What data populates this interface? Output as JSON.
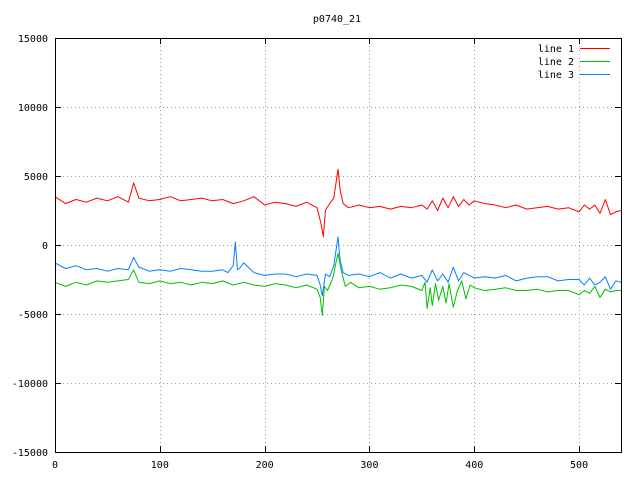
{
  "chart_data": {
    "type": "line",
    "title": "p0740_21",
    "xlabel": "",
    "ylabel": "",
    "xlim": [
      0,
      540
    ],
    "ylim": [
      -15000,
      15000
    ],
    "xticks": [
      0,
      100,
      200,
      300,
      400,
      500
    ],
    "yticks": [
      -15000,
      -10000,
      -5000,
      0,
      5000,
      10000,
      15000
    ],
    "grid": true,
    "legend_position": "top-right",
    "series": [
      {
        "name": "line 1",
        "color": "#ff0000",
        "x": [
          0,
          10,
          20,
          30,
          40,
          50,
          60,
          70,
          75,
          80,
          90,
          100,
          110,
          120,
          130,
          140,
          150,
          160,
          170,
          180,
          190,
          200,
          210,
          220,
          230,
          240,
          250,
          254,
          256,
          258,
          262,
          266,
          270,
          272,
          275,
          280,
          290,
          300,
          310,
          320,
          330,
          340,
          350,
          355,
          360,
          365,
          370,
          375,
          380,
          385,
          390,
          395,
          400,
          410,
          420,
          430,
          440,
          450,
          460,
          470,
          480,
          490,
          500,
          505,
          510,
          515,
          520,
          525,
          530,
          535,
          540
        ],
        "y": [
          3500,
          3000,
          3300,
          3100,
          3400,
          3200,
          3500,
          3100,
          4500,
          3400,
          3200,
          3300,
          3500,
          3200,
          3300,
          3400,
          3200,
          3300,
          3000,
          3200,
          3500,
          2900,
          3100,
          3000,
          2800,
          3100,
          2700,
          1500,
          600,
          2500,
          3000,
          3400,
          5500,
          4000,
          3000,
          2700,
          2900,
          2700,
          2800,
          2600,
          2800,
          2700,
          2900,
          2600,
          3200,
          2500,
          3400,
          2700,
          3500,
          2800,
          3300,
          2900,
          3200,
          3000,
          2900,
          2700,
          2900,
          2600,
          2700,
          2800,
          2600,
          2700,
          2400,
          2900,
          2600,
          2900,
          2300,
          3300,
          2200,
          2400,
          2500
        ]
      },
      {
        "name": "line 2",
        "color": "#00c000",
        "x": [
          0,
          10,
          20,
          30,
          40,
          50,
          60,
          70,
          75,
          80,
          90,
          100,
          110,
          120,
          130,
          140,
          150,
          160,
          170,
          180,
          190,
          200,
          210,
          220,
          230,
          240,
          250,
          253,
          255,
          257,
          260,
          265,
          268,
          270,
          273,
          277,
          282,
          290,
          300,
          310,
          320,
          330,
          340,
          350,
          353,
          355,
          358,
          360,
          363,
          366,
          370,
          373,
          376,
          380,
          384,
          388,
          392,
          396,
          400,
          410,
          420,
          430,
          440,
          450,
          460,
          470,
          480,
          490,
          500,
          505,
          510,
          515,
          520,
          525,
          530,
          535,
          540
        ],
        "y": [
          -2700,
          -3000,
          -2700,
          -2900,
          -2600,
          -2700,
          -2600,
          -2500,
          -1800,
          -2700,
          -2800,
          -2600,
          -2800,
          -2700,
          -2900,
          -2700,
          -2800,
          -2600,
          -2900,
          -2700,
          -2900,
          -3000,
          -2800,
          -2900,
          -3100,
          -2900,
          -3200,
          -3800,
          -5100,
          -3000,
          -3300,
          -2400,
          -1300,
          -600,
          -1800,
          -3000,
          -2700,
          -3100,
          -3000,
          -3200,
          -3100,
          -2900,
          -3000,
          -3300,
          -2700,
          -4600,
          -3100,
          -4400,
          -2800,
          -4000,
          -3000,
          -4200,
          -2800,
          -4500,
          -3300,
          -2600,
          -3900,
          -2900,
          -3100,
          -3300,
          -3200,
          -3100,
          -3300,
          -3300,
          -3200,
          -3400,
          -3300,
          -3300,
          -3600,
          -3300,
          -3500,
          -3000,
          -3800,
          -3200,
          -3400,
          -3300,
          -3300
        ]
      },
      {
        "name": "line 3",
        "color": "#0080ff",
        "x": [
          0,
          10,
          20,
          30,
          40,
          50,
          60,
          70,
          75,
          80,
          90,
          100,
          110,
          120,
          130,
          140,
          150,
          160,
          165,
          170,
          172,
          174,
          176,
          180,
          190,
          200,
          210,
          220,
          230,
          240,
          250,
          253,
          255,
          258,
          262,
          266,
          270,
          272,
          275,
          280,
          290,
          300,
          310,
          320,
          330,
          340,
          350,
          355,
          360,
          365,
          370,
          375,
          380,
          385,
          390,
          400,
          410,
          420,
          430,
          440,
          450,
          460,
          470,
          480,
          490,
          500,
          505,
          510,
          515,
          520,
          525,
          530,
          535,
          540
        ],
        "y": [
          -1300,
          -1700,
          -1500,
          -1800,
          -1700,
          -1900,
          -1700,
          -1800,
          -900,
          -1600,
          -1900,
          -1800,
          -1900,
          -1700,
          -1800,
          -1900,
          -1900,
          -1800,
          -2000,
          -1500,
          200,
          -1800,
          -1700,
          -1300,
          -2000,
          -2200,
          -2100,
          -2100,
          -2300,
          -2100,
          -2200,
          -2900,
          -3700,
          -2100,
          -2300,
          -1500,
          600,
          -1100,
          -2000,
          -2200,
          -2100,
          -2300,
          -2000,
          -2400,
          -2100,
          -2400,
          -2200,
          -2700,
          -1800,
          -2600,
          -2100,
          -2700,
          -1600,
          -2600,
          -2000,
          -2400,
          -2300,
          -2400,
          -2200,
          -2600,
          -2400,
          -2300,
          -2300,
          -2600,
          -2500,
          -2500,
          -2900,
          -2400,
          -2900,
          -2700,
          -2300,
          -3200,
          -2600,
          -2700
        ]
      }
    ]
  }
}
